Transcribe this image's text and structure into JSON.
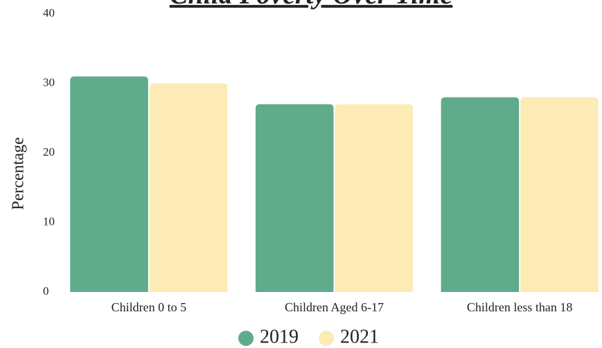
{
  "chart_data": {
    "type": "bar",
    "title": "Child Poverty Over Time",
    "y_label": "Percentage",
    "categories": [
      "Children 0 to 5",
      "Children Aged 6-17",
      "Children less than 18"
    ],
    "series": [
      {
        "name": "2019",
        "color": "#5fab8b",
        "values": [
          31,
          27,
          28
        ]
      },
      {
        "name": "2021",
        "color": "#fdebb5",
        "values": [
          30,
          27,
          28
        ]
      }
    ],
    "ylim": [
      0,
      40
    ],
    "yticks": [
      0,
      10,
      20,
      30,
      40
    ],
    "grid": false,
    "legend": "bottom"
  }
}
